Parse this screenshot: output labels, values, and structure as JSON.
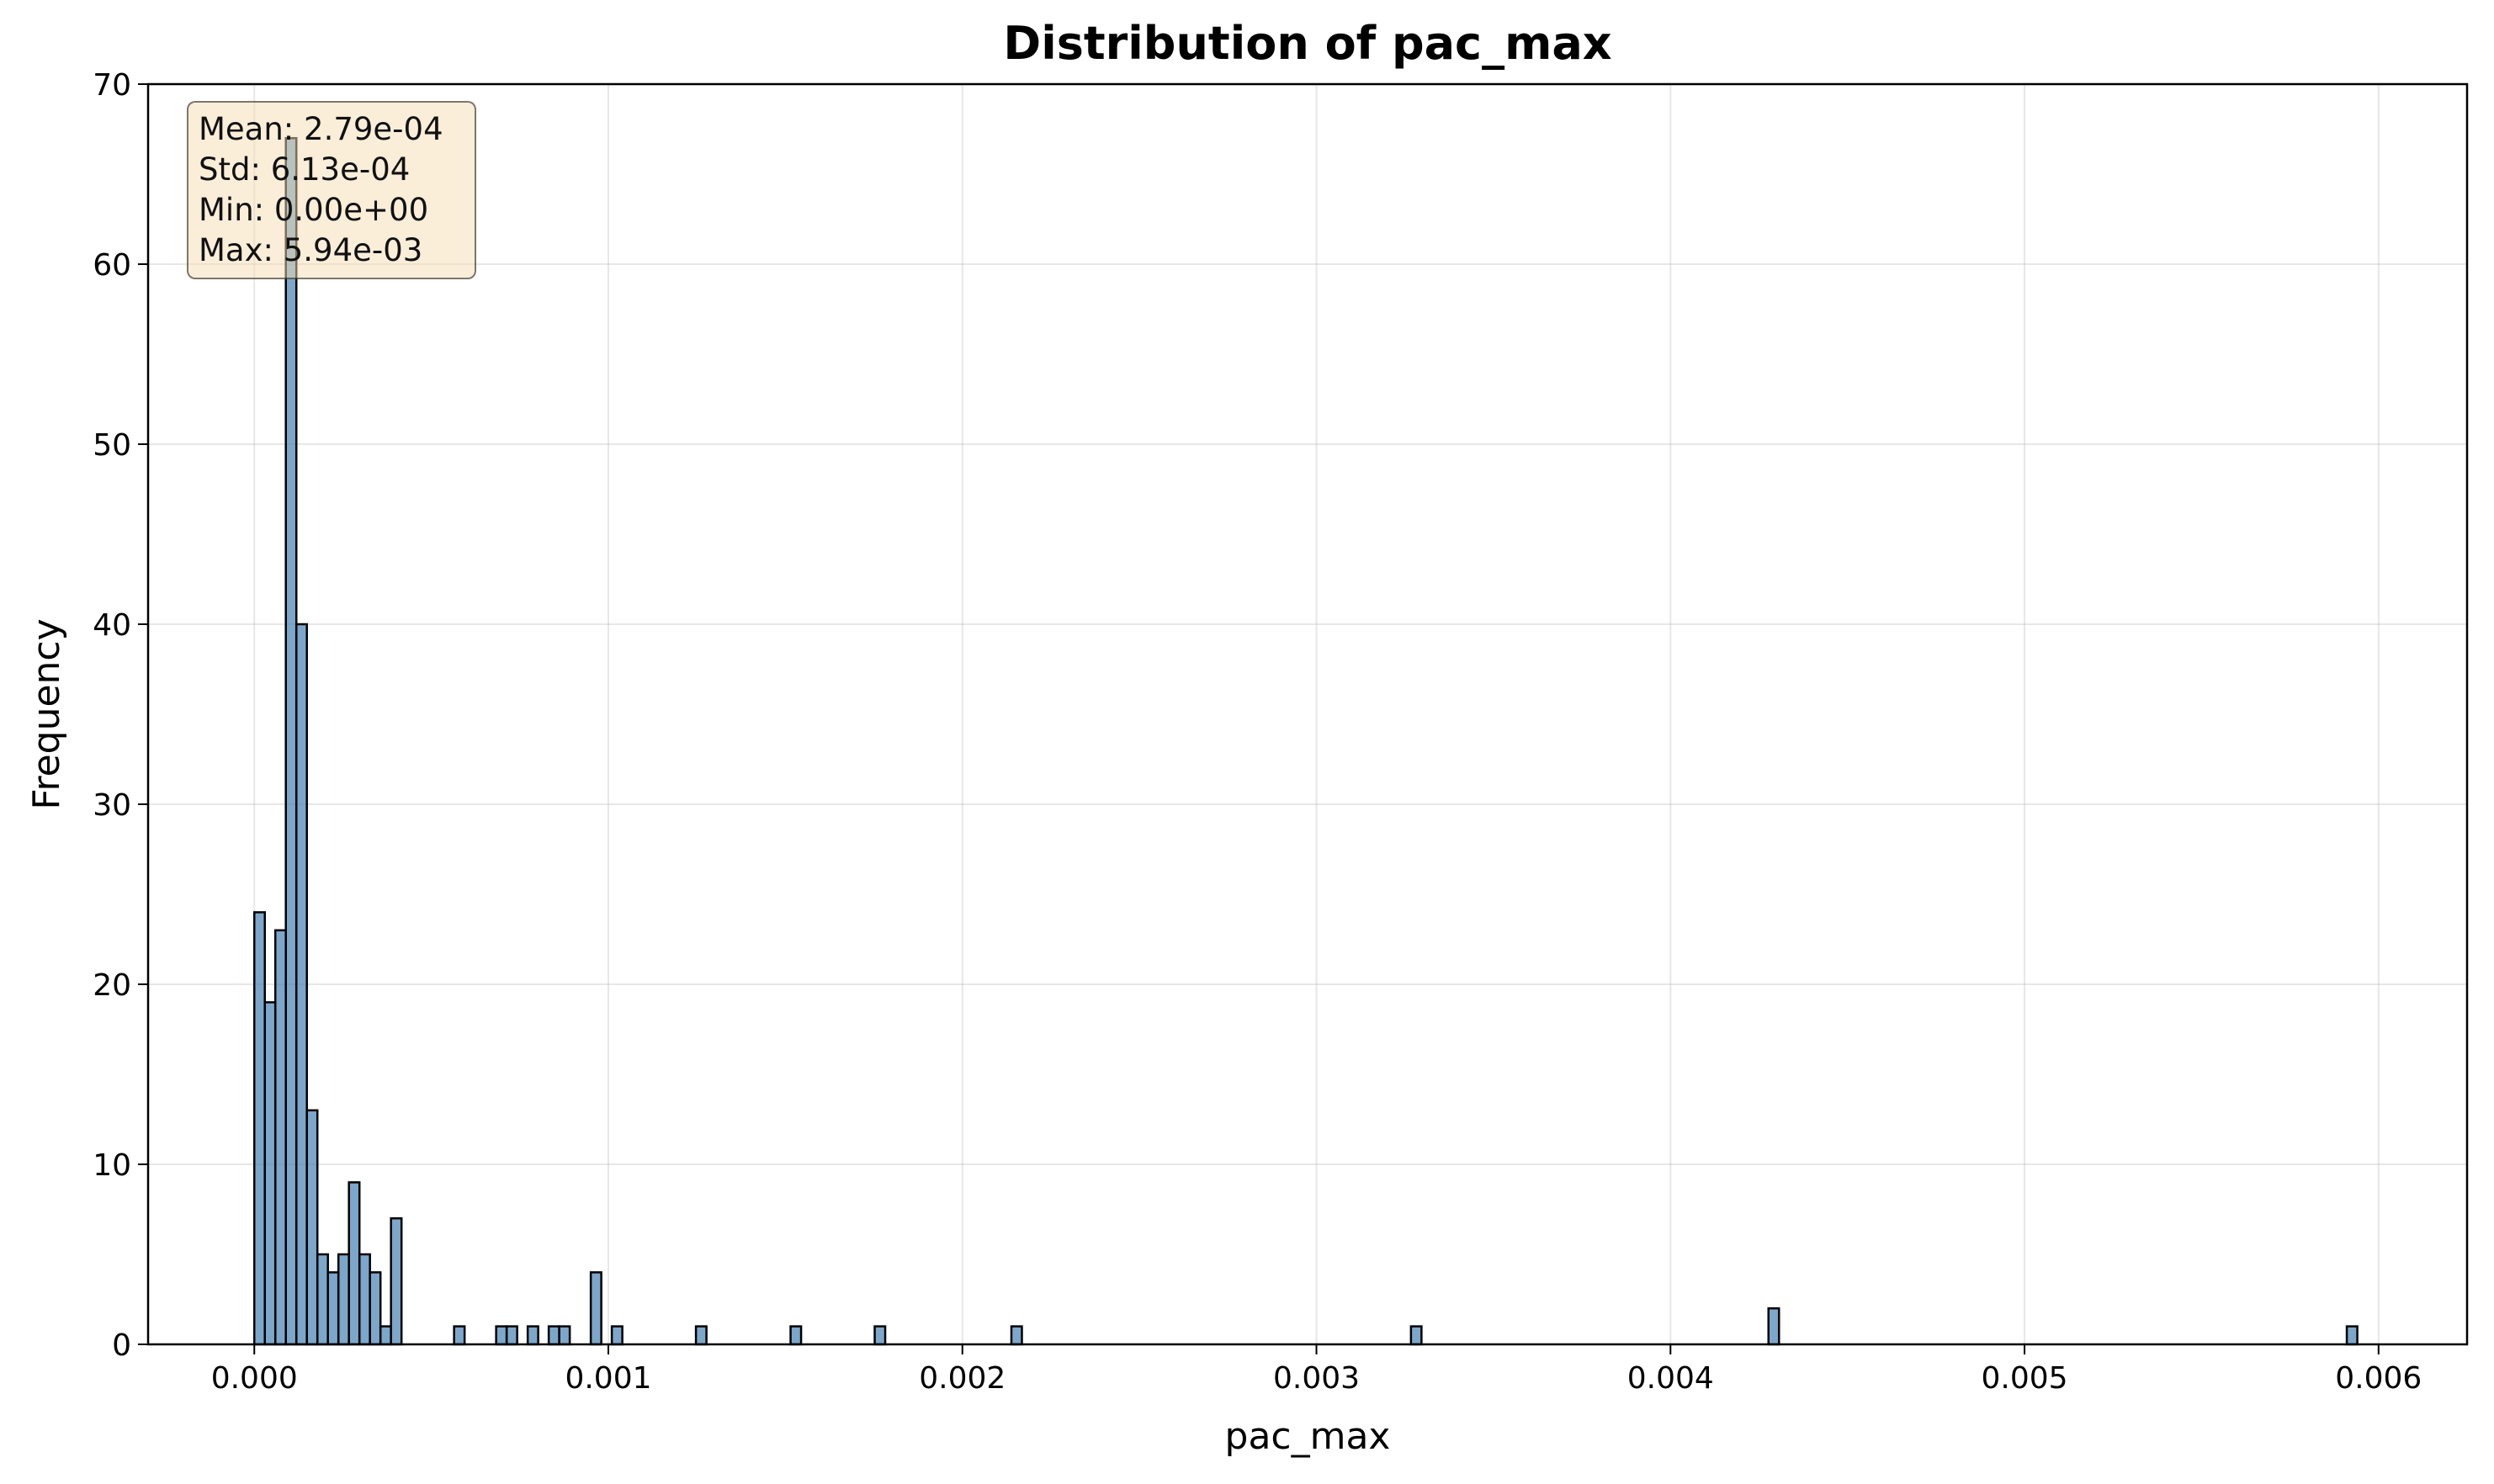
{
  "chart_data": {
    "type": "bar",
    "title": "Distribution of pac_max",
    "xlabel": "pac_max",
    "ylabel": "Frequency",
    "xlim": [
      -0.0003,
      0.00625
    ],
    "ylim": [
      0,
      70
    ],
    "grid": true,
    "x_ticks": [
      0.0,
      0.001,
      0.002,
      0.003,
      0.004,
      0.005,
      0.006
    ],
    "x_tick_labels": [
      "0.000",
      "0.001",
      "0.002",
      "0.003",
      "0.004",
      "0.005",
      "0.006"
    ],
    "y_ticks": [
      0,
      10,
      20,
      30,
      40,
      50,
      60,
      70
    ],
    "y_tick_labels": [
      "0",
      "10",
      "20",
      "30",
      "40",
      "50",
      "60",
      "70"
    ],
    "bin_width": 2.97e-05,
    "bar_color": "#4682b4",
    "bins": [
      {
        "x": 0.0,
        "count": 24
      },
      {
        "x": 2.97e-05,
        "count": 19
      },
      {
        "x": 5.94e-05,
        "count": 23
      },
      {
        "x": 8.91e-05,
        "count": 67
      },
      {
        "x": 0.0001188,
        "count": 40
      },
      {
        "x": 0.0001485,
        "count": 13
      },
      {
        "x": 0.0001782,
        "count": 5
      },
      {
        "x": 0.0002079,
        "count": 4
      },
      {
        "x": 0.0002376,
        "count": 5
      },
      {
        "x": 0.0002673,
        "count": 9
      },
      {
        "x": 0.000297,
        "count": 5
      },
      {
        "x": 0.0003267,
        "count": 4
      },
      {
        "x": 0.0003564,
        "count": 1
      },
      {
        "x": 0.0003861,
        "count": 7
      },
      {
        "x": 0.0005643,
        "count": 1
      },
      {
        "x": 0.0006831,
        "count": 1
      },
      {
        "x": 0.0007128,
        "count": 1
      },
      {
        "x": 0.0007722,
        "count": 1
      },
      {
        "x": 0.0008316,
        "count": 1
      },
      {
        "x": 0.0008613,
        "count": 1
      },
      {
        "x": 0.0009504,
        "count": 4
      },
      {
        "x": 0.0010098,
        "count": 1
      },
      {
        "x": 0.0012474,
        "count": 1
      },
      {
        "x": 0.0015147,
        "count": 1
      },
      {
        "x": 0.0017523,
        "count": 1
      },
      {
        "x": 0.0021384,
        "count": 1
      },
      {
        "x": 0.003267,
        "count": 1
      },
      {
        "x": 0.0042768,
        "count": 2
      },
      {
        "x": 0.0059103,
        "count": 1
      }
    ],
    "stats": {
      "mean": "Mean: 2.79e-04",
      "std": "Std: 6.13e-04",
      "min": "Min: 0.00e+00",
      "max": "Max: 5.94e-03"
    }
  }
}
